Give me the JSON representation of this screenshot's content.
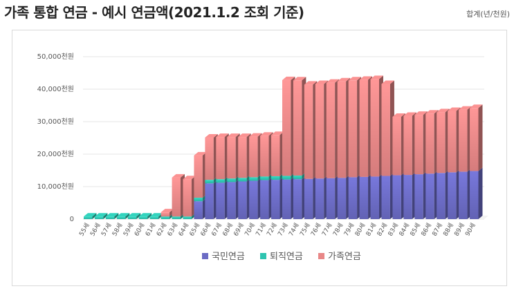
{
  "title": "가족 통합 연금 - 예시 연금액(2021.1.2 조회 기준)",
  "unit_label": "합계(년/천원)",
  "colors": {
    "national": "#6b6bc4",
    "retirement": "#2ec4b0",
    "family": "#e88787"
  },
  "chart_data": {
    "type": "bar",
    "stacked": true,
    "categories": [
      "55세",
      "56세",
      "57세",
      "58세",
      "59세",
      "60세",
      "61세",
      "62세",
      "63세",
      "64세",
      "65세",
      "66세",
      "67세",
      "68세",
      "69세",
      "70세",
      "71세",
      "72세",
      "73세",
      "74세",
      "75세",
      "76세",
      "77세",
      "78세",
      "79세",
      "80세",
      "81세",
      "82세",
      "83세",
      "84세",
      "85세",
      "86세",
      "87세",
      "88세",
      "89세",
      "90세"
    ],
    "series": [
      {
        "name": "국민연금",
        "values": [
          0,
          0,
          0,
          0,
          0,
          0,
          0,
          0,
          0,
          0,
          5500,
          11000,
          11200,
          11400,
          11600,
          11800,
          12000,
          12100,
          12200,
          12300,
          12400,
          12500,
          12600,
          12700,
          12900,
          13000,
          13100,
          13300,
          13500,
          13600,
          13800,
          14000,
          14200,
          14400,
          14600,
          14800
        ]
      },
      {
        "name": "퇴직연금",
        "values": [
          800,
          800,
          800,
          800,
          800,
          800,
          800,
          800,
          800,
          800,
          1100,
          1100,
          1100,
          1100,
          1100,
          1100,
          1100,
          1100,
          1100,
          1100,
          0,
          0,
          0,
          0,
          0,
          0,
          0,
          0,
          0,
          0,
          0,
          0,
          0,
          0,
          0,
          0
        ]
      },
      {
        "name": "가족연금",
        "values": [
          0,
          0,
          0,
          0,
          0,
          0,
          0,
          1300,
          12000,
          11500,
          13000,
          13000,
          13000,
          12800,
          12600,
          12500,
          12600,
          12700,
          29500,
          29300,
          29000,
          29100,
          29400,
          29700,
          29800,
          29900,
          30000,
          28300,
          18000,
          18200,
          18300,
          18500,
          18700,
          18900,
          19100,
          19400
        ]
      }
    ],
    "yticks": [
      "0",
      "10,000천원",
      "20,000천원",
      "30,000천원",
      "40,000천원",
      "50,000천원"
    ],
    "ylim": [
      0,
      50000
    ],
    "legend_position": "bottom",
    "grid": true
  }
}
